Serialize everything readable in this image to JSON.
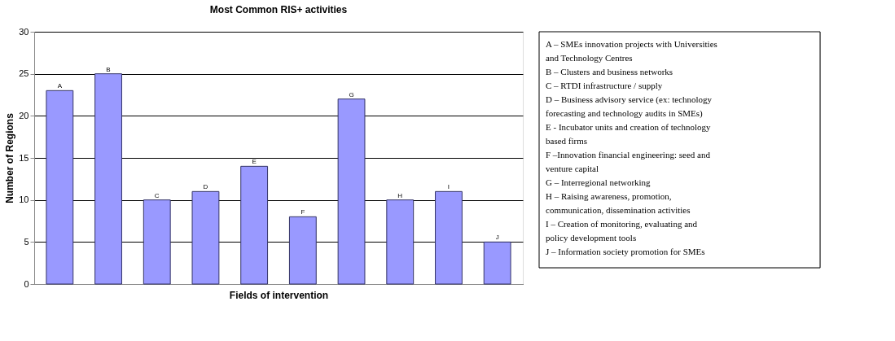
{
  "chart_data": {
    "type": "bar",
    "title": "Most Common RIS+ activities",
    "xlabel": "Fields of intervention",
    "ylabel": "Number of Regions",
    "categories": [
      "A",
      "B",
      "C",
      "D",
      "E",
      "F",
      "G",
      "H",
      "I",
      "J"
    ],
    "values": [
      23,
      25,
      10,
      11,
      14,
      8,
      22,
      10,
      11,
      5
    ],
    "color": "#9999ff",
    "ylim": [
      0,
      30
    ],
    "yticks": [
      0,
      5,
      10,
      15,
      20,
      25,
      30
    ],
    "grid": "y",
    "annotations": [
      "A – SMEs innovation projects with Universities and Technology Centres",
      "B – Clusters and business networks",
      "C – RTDI infrastructure / supply",
      "D – Business advisory service (ex: technology forecasting and technology audits in SMEs)",
      "E - Incubator units and creation of technology based firms",
      "F –Innovation financial engineering: seed and venture capital",
      "G – Interregional networking",
      "H – Raising awareness, promotion, communication, dissemination activities",
      "I – Creation of  monitoring, evaluating and policy development tools",
      "J – Information society promotion for SMEs"
    ]
  }
}
